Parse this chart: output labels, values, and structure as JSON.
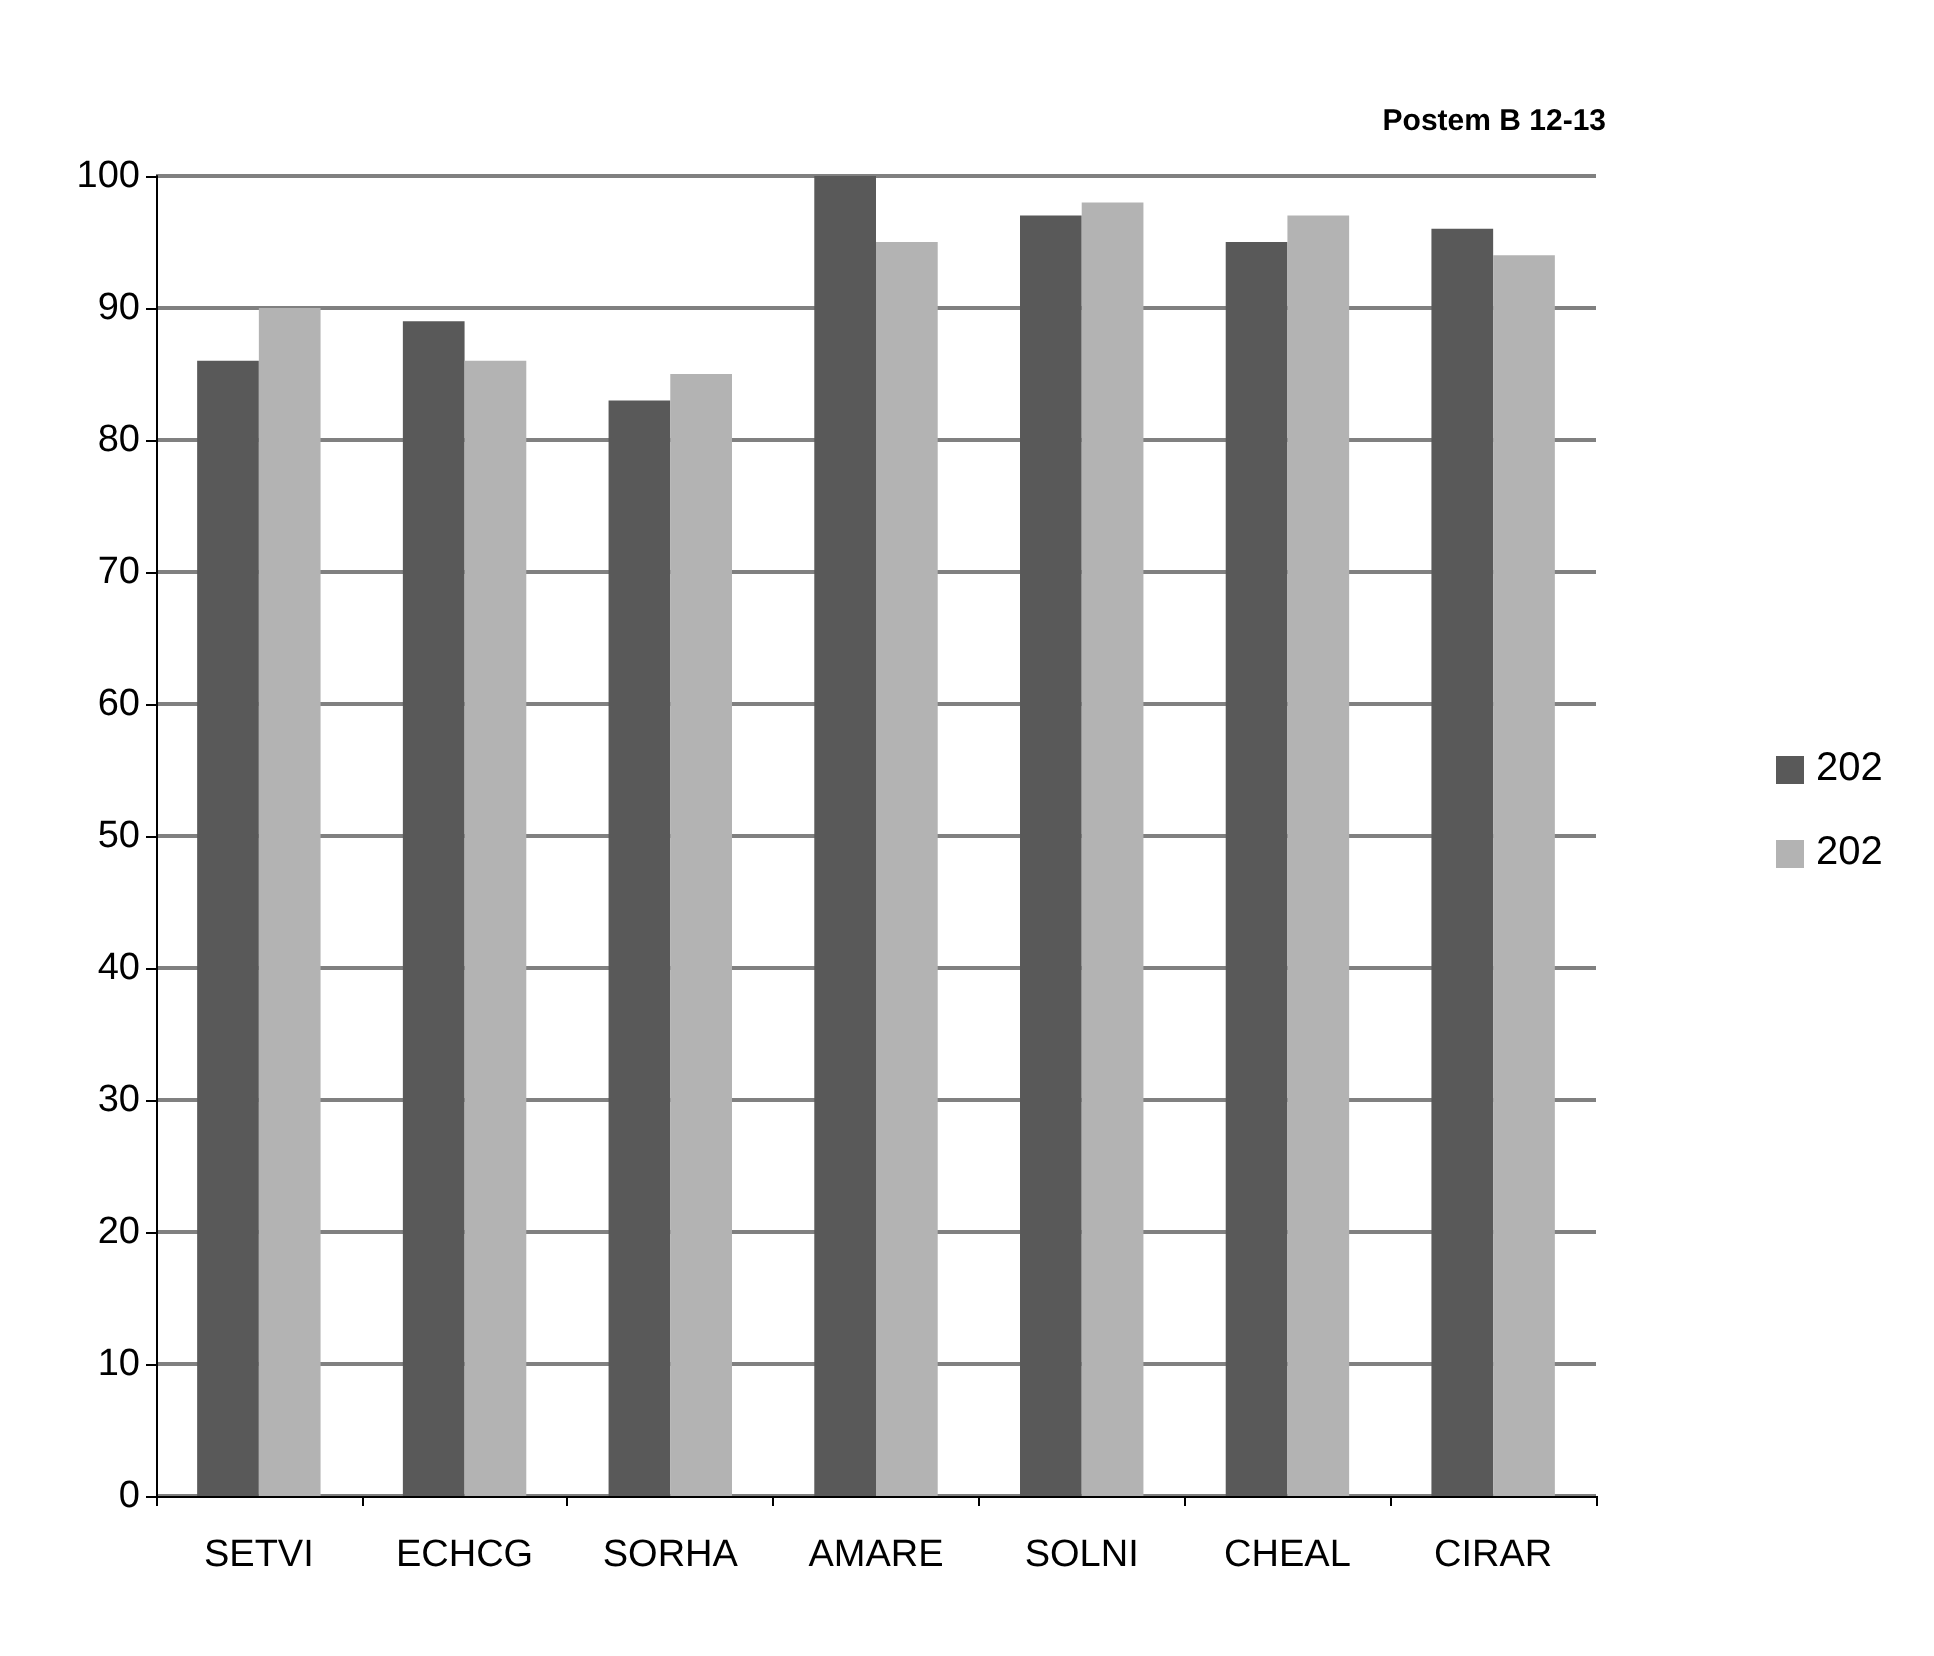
{
  "chart_data": {
    "type": "bar",
    "title": "Postem B 12-13",
    "categories": [
      "SETVI",
      "ECHCG",
      "SORHA",
      "AMARE",
      "SOLNI",
      "CHEAL",
      "CIRAR"
    ],
    "series": [
      {
        "name": "202",
        "color": "#595959",
        "values": [
          86,
          89,
          83,
          100,
          97,
          95,
          96
        ]
      },
      {
        "name": "202",
        "color": "#b3b3b3",
        "values": [
          90,
          86,
          85,
          95,
          98,
          97,
          94
        ]
      }
    ],
    "ylim": [
      0,
      100
    ],
    "yticks": [
      0,
      10,
      20,
      30,
      40,
      50,
      60,
      70,
      80,
      90,
      100
    ],
    "grid": "y",
    "legend": "right"
  }
}
